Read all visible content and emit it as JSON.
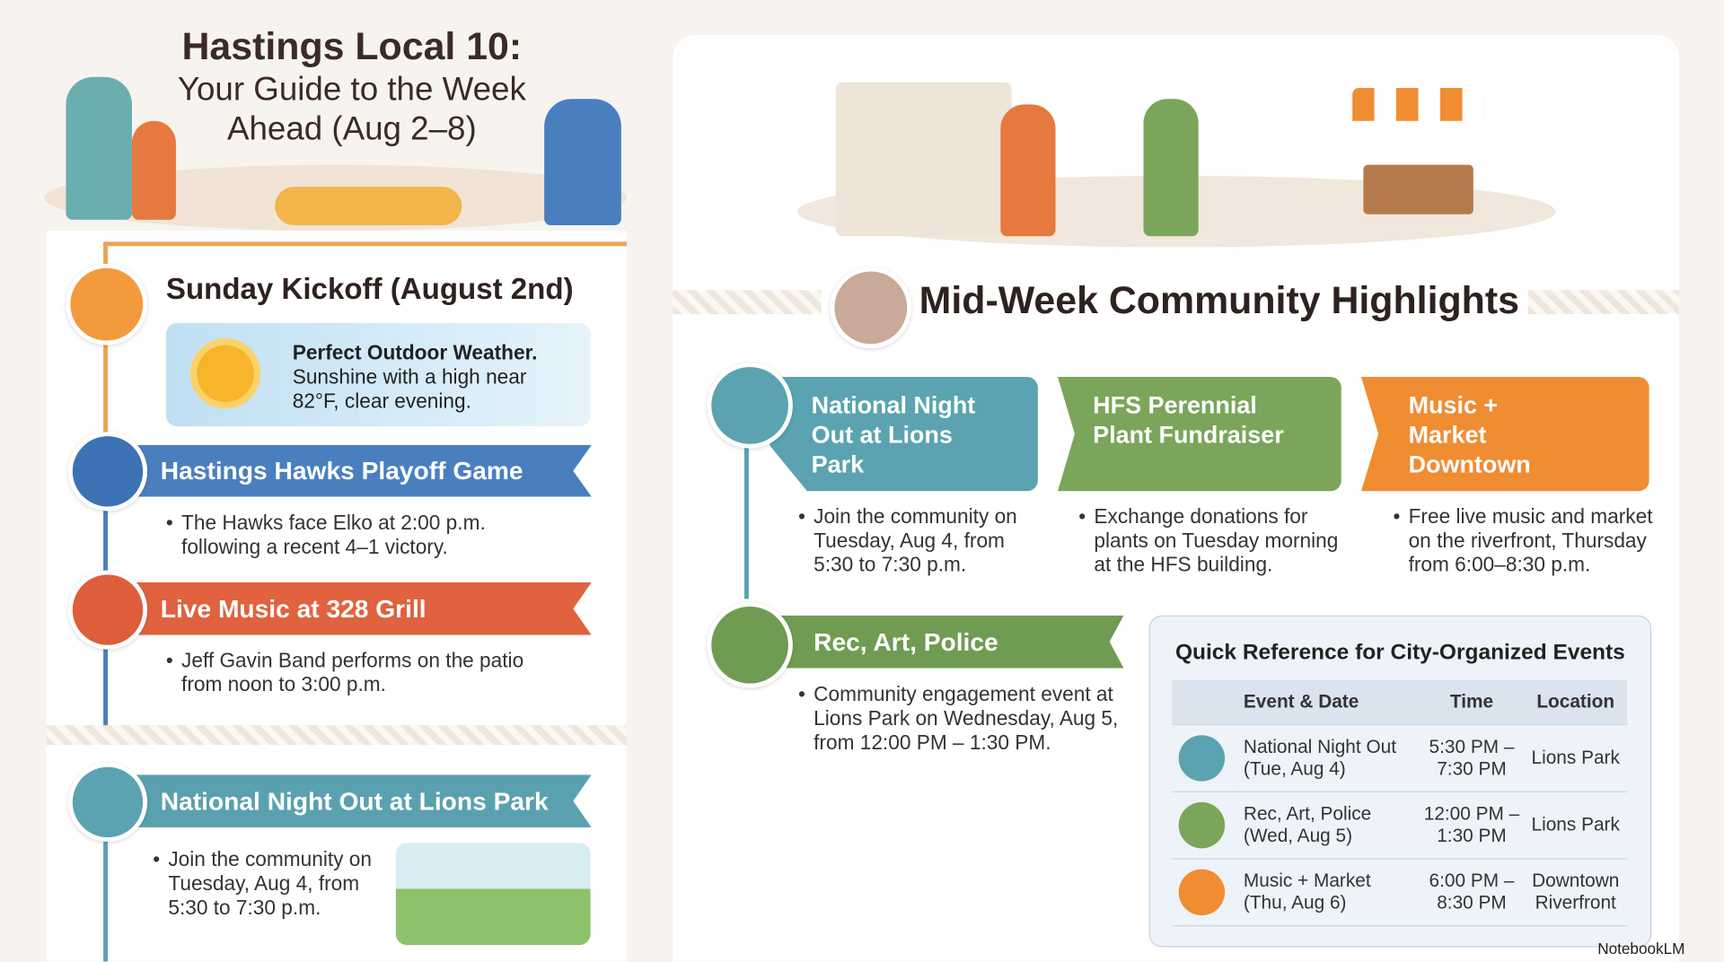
{
  "header": {
    "title": "Hastings Local 10:",
    "subtitle": "Your Guide to the Week Ahead (Aug 2–8)"
  },
  "left": {
    "kickoff": {
      "heading": "Sunday Kickoff (August 2nd)",
      "weather_title": "Perfect Outdoor Weather.",
      "weather_text": "Sunshine with a high near 82°F, clear evening."
    },
    "events": [
      {
        "title": "Hastings Hawks Playoff Game",
        "text": "The Hawks face Elko at 2:00 p.m. following a recent 4–1 victory."
      },
      {
        "title": "Live Music at 328 Grill",
        "text": "Jeff Gavin Band performs on the patio from noon to 3:00 p.m."
      },
      {
        "title": "National Night Out at Lions Park",
        "text": "Join the community on Tuesday, Aug 4, from 5:30 to 7:30 p.m."
      }
    ]
  },
  "right": {
    "heading": "Mid-Week Community Highlights",
    "cards": [
      {
        "title": "National Night Out at Lions Park",
        "text": "Join the community on Tuesday, Aug 4, from 5:30 to 7:30 p.m."
      },
      {
        "title": "HFS Perennial Plant Fundraiser",
        "text": "Exchange donations for plants on Tuesday morning at the HFS building."
      },
      {
        "title": "Music + Market Downtown",
        "text": "Free live music and market on the riverfront, Thursday from 6:00–8:30 p.m."
      }
    ],
    "rec": {
      "title": "Rec, Art, Police",
      "text": "Community engagement event at Lions Park on Wednesday, Aug 5, from 12:00 PM – 1:30 PM."
    },
    "table": {
      "title": "Quick Reference for City-Organized Events",
      "columns": [
        "Event & Date",
        "Time",
        "Location"
      ],
      "rows": [
        [
          "National Night Out (Tue, Aug 4)",
          "5:30 PM – 7:30 PM",
          "Lions Park"
        ],
        [
          "Rec, Art, Police (Wed, Aug 5)",
          "12:00 PM – 1:30 PM",
          "Lions Park"
        ],
        [
          "Music + Market (Thu, Aug 6)",
          "6:00 PM – 8:30 PM",
          "Downtown Riverfront"
        ]
      ]
    }
  },
  "footer": {
    "brand": "NotebookLM"
  }
}
